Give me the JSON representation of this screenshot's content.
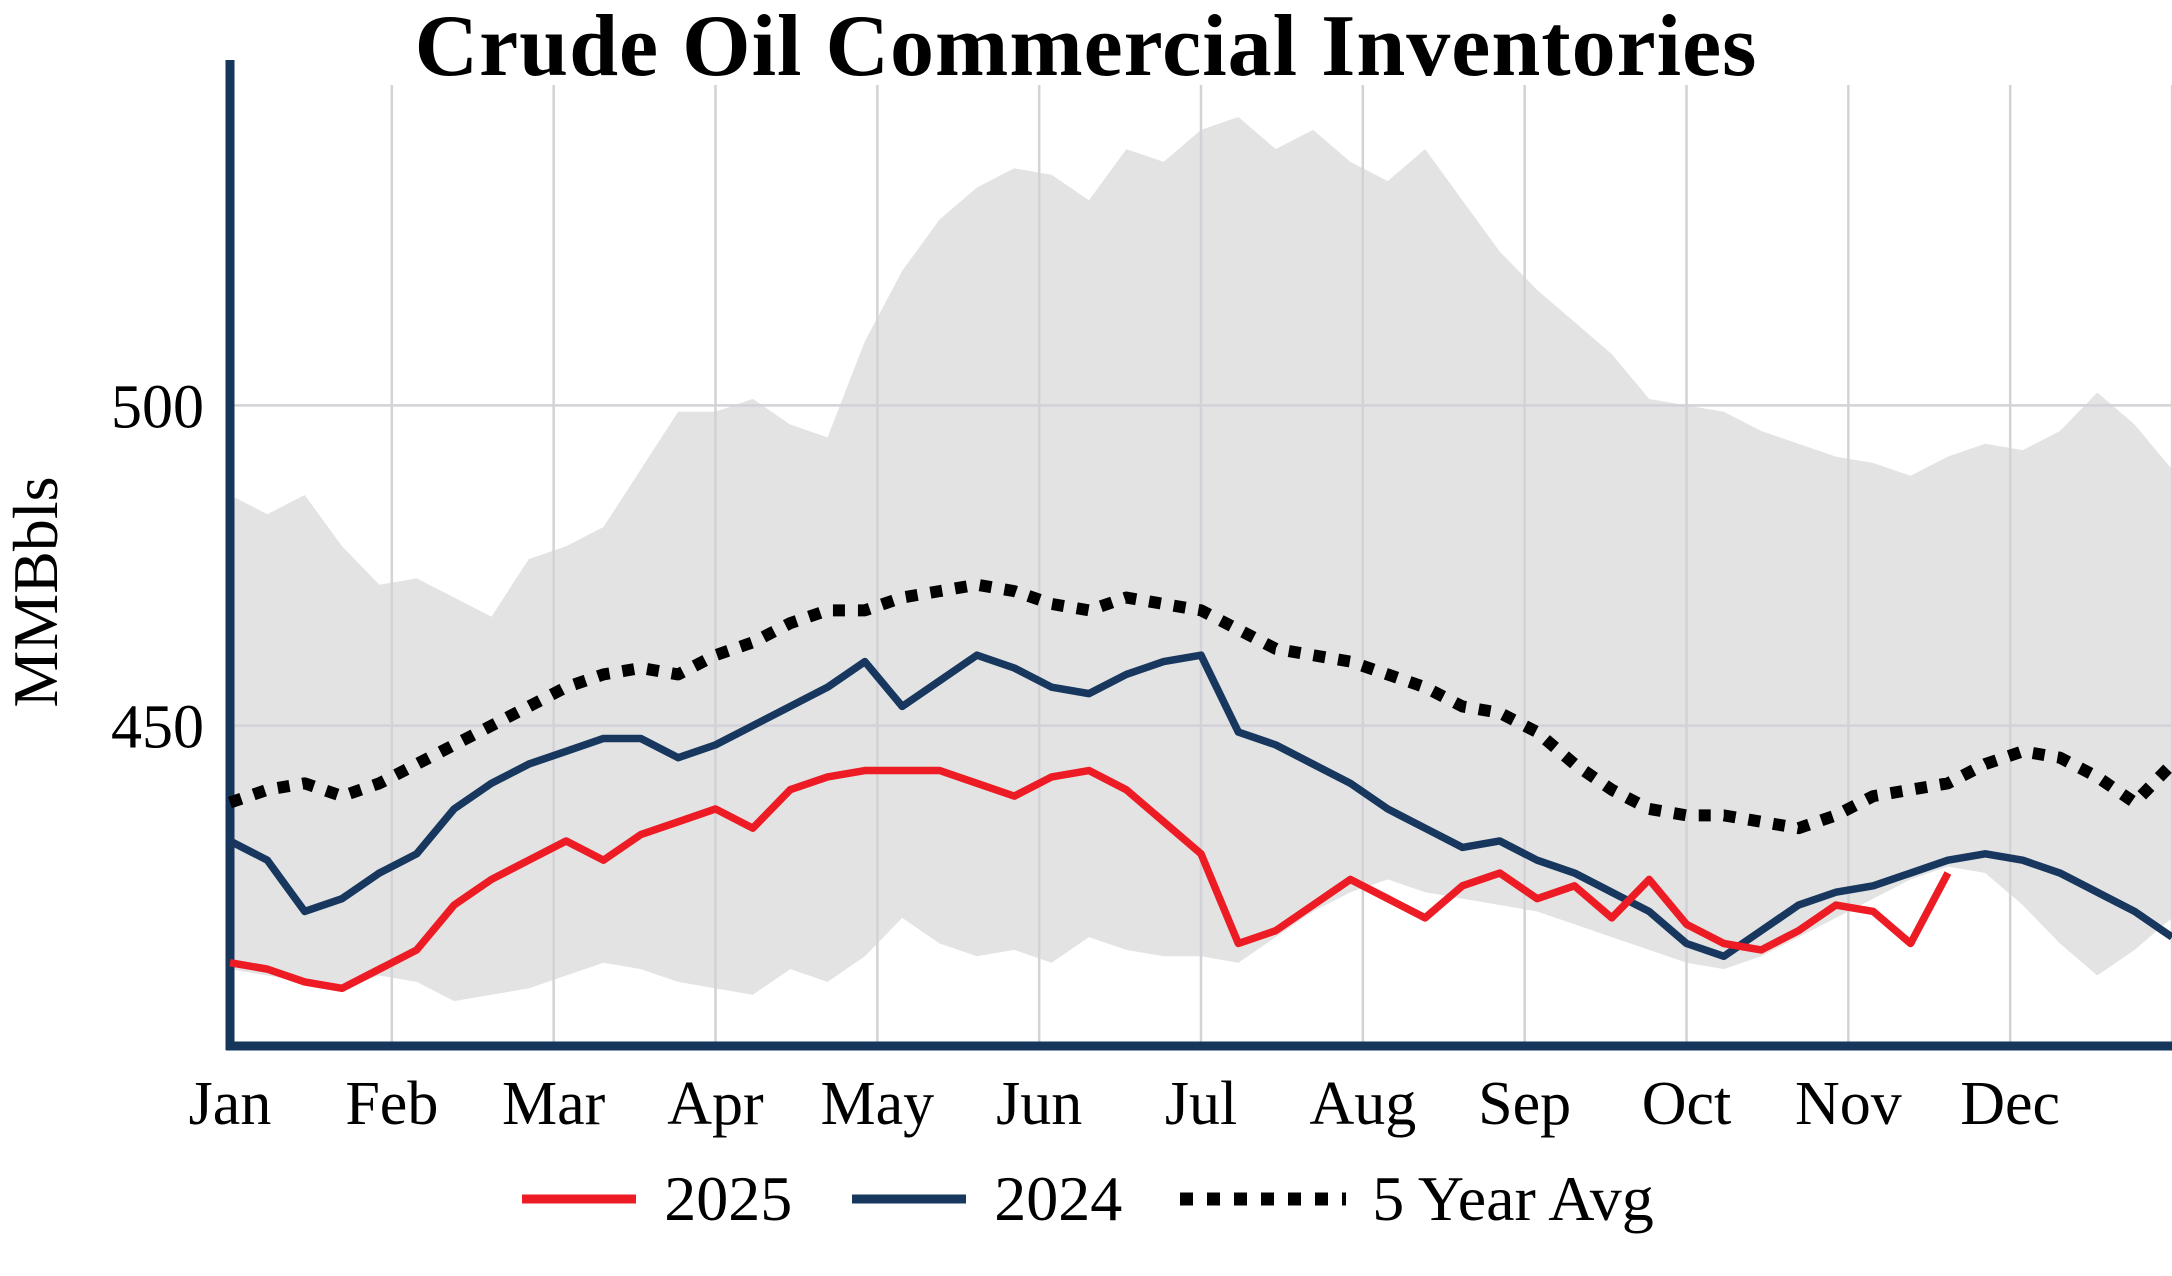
{
  "chart_data": {
    "type": "line",
    "title": "Crude Oil Commercial Inventories",
    "ylabel": "MMBbls",
    "x_tick_labels": [
      "Jan",
      "Feb",
      "Mar",
      "Apr",
      "May",
      "Jun",
      "Jul",
      "Aug",
      "Sep",
      "Oct",
      "Nov",
      "Dec"
    ],
    "y_ticks": [
      450,
      500
    ],
    "ylim": [
      400,
      550
    ],
    "x_range_weeks": [
      0,
      52
    ],
    "grid": true,
    "legend_position": "bottom",
    "band": {
      "color": "#e3e3e3",
      "upper": [
        486,
        483,
        486,
        478,
        472,
        473,
        470,
        467,
        476,
        478,
        481,
        490,
        499,
        499,
        501,
        497,
        495,
        510,
        521,
        529,
        534,
        537,
        536,
        532,
        540,
        538,
        543,
        545,
        540,
        543,
        538,
        535,
        540,
        532,
        524,
        518,
        513,
        508,
        501,
        500,
        499,
        496,
        494,
        492,
        491,
        489,
        492,
        494,
        493,
        496,
        502,
        497,
        490
      ],
      "lower": [
        412,
        411,
        410,
        409,
        411,
        410,
        407,
        408,
        409,
        411,
        413,
        412,
        410,
        409,
        408,
        412,
        410,
        414,
        420,
        416,
        414,
        415,
        413,
        417,
        415,
        414,
        414,
        413,
        417,
        421,
        424,
        426,
        424,
        423,
        422,
        421,
        419,
        417,
        415,
        413,
        412,
        414,
        417,
        420,
        423,
        426,
        428,
        427,
        422,
        416,
        411,
        415,
        420
      ]
    },
    "series": [
      {
        "name": "2025",
        "color": "#ed1c24",
        "style": "solid",
        "values": [
          413,
          412,
          410,
          409,
          412,
          415,
          422,
          426,
          429,
          432,
          429,
          433,
          435,
          437,
          434,
          440,
          442,
          443,
          443,
          443,
          441,
          439,
          442,
          443,
          440,
          435,
          430,
          416,
          418,
          422,
          426,
          423,
          420,
          425,
          427,
          423,
          425,
          420,
          426,
          419,
          416,
          415,
          418,
          422,
          421,
          416,
          427
        ]
      },
      {
        "name": "2024",
        "color": "#17375e",
        "style": "solid",
        "values": [
          432,
          429,
          421,
          423,
          427,
          430,
          437,
          441,
          444,
          446,
          448,
          448,
          445,
          447,
          450,
          453,
          456,
          460,
          453,
          457,
          461,
          459,
          456,
          455,
          458,
          460,
          461,
          449,
          447,
          444,
          441,
          437,
          434,
          431,
          432,
          429,
          427,
          424,
          421,
          416,
          414,
          418,
          422,
          424,
          425,
          427,
          429,
          430,
          429,
          427,
          424,
          421,
          417
        ]
      },
      {
        "name": "5 Year Avg",
        "color": "#000000",
        "style": "dotted",
        "values": [
          438,
          440,
          441,
          439,
          441,
          444,
          447,
          450,
          453,
          456,
          458,
          459,
          458,
          461,
          463,
          466,
          468,
          468,
          470,
          471,
          472,
          471,
          469,
          468,
          470,
          469,
          468,
          465,
          462,
          461,
          460,
          458,
          456,
          453,
          452,
          449,
          444,
          440,
          437,
          436,
          436,
          435,
          434,
          436,
          439,
          440,
          441,
          444,
          446,
          445,
          442,
          438,
          444
        ]
      }
    ],
    "colors": {
      "axis": "#16365c",
      "grid": "#d2d2d8"
    }
  }
}
